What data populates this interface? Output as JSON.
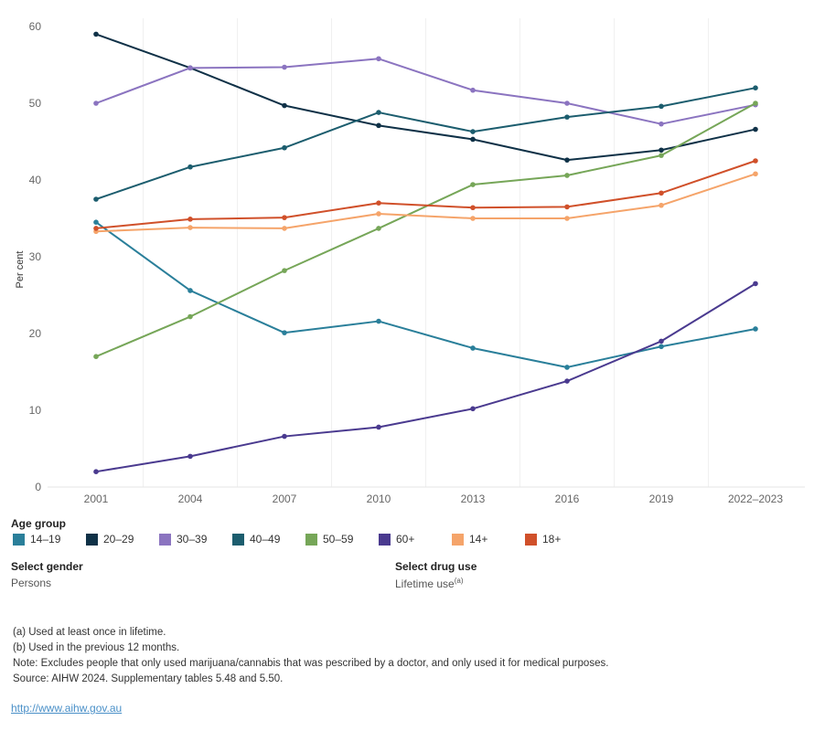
{
  "chart_data": {
    "type": "line",
    "ylabel": "Per cent",
    "xlabel": "",
    "ylim": [
      0,
      60
    ],
    "yticks": [
      0,
      10,
      20,
      30,
      40,
      50,
      60
    ],
    "categories": [
      "2001",
      "2004",
      "2007",
      "2010",
      "2013",
      "2016",
      "2019",
      "2022–2023"
    ],
    "series": [
      {
        "name": "14–19",
        "color": "#2a7f9a",
        "values": [
          34.5,
          25.6,
          20.1,
          21.6,
          18.1,
          15.6,
          18.3,
          20.6
        ]
      },
      {
        "name": "20–29",
        "color": "#0f3147",
        "values": [
          59.0,
          54.6,
          49.7,
          47.1,
          45.3,
          42.6,
          43.9,
          46.6
        ]
      },
      {
        "name": "30–39",
        "color": "#8b74c0",
        "values": [
          50.0,
          54.6,
          54.7,
          55.8,
          51.7,
          50.0,
          47.3,
          49.8
        ]
      },
      {
        "name": "40–49",
        "color": "#1c5d6e",
        "values": [
          37.5,
          41.7,
          44.2,
          48.8,
          46.3,
          48.2,
          49.6,
          52.0
        ]
      },
      {
        "name": "50–59",
        "color": "#76a658",
        "values": [
          17.0,
          22.2,
          28.2,
          33.7,
          39.4,
          40.6,
          43.2,
          50.0
        ]
      },
      {
        "name": "60+",
        "color": "#4a3a8f",
        "values": [
          2.0,
          4.0,
          6.6,
          7.8,
          10.2,
          13.8,
          19.0,
          26.5
        ]
      },
      {
        "name": "14+",
        "color": "#f5a46a",
        "values": [
          33.3,
          33.8,
          33.7,
          35.6,
          35.0,
          35.0,
          36.7,
          40.8
        ]
      },
      {
        "name": "18+",
        "color": "#d0502a",
        "values": [
          33.7,
          34.9,
          35.1,
          37.0,
          36.4,
          36.5,
          38.3,
          42.5
        ]
      }
    ]
  },
  "legend": {
    "title": "Age group"
  },
  "filters": {
    "gender": {
      "label": "Select gender",
      "value": "Persons"
    },
    "drug_use": {
      "label": "Select drug use",
      "value": "Lifetime use",
      "superscript": "(a)"
    }
  },
  "notes": {
    "a": "(a) Used at least once in lifetime.",
    "b": "(b) Used in the previous 12 months.",
    "note": "Note: Excludes people that only used marijuana/cannabis that was pescribed by a doctor, and only used it for medical purposes.",
    "source": "Source: AIHW 2024. Supplementary tables 5.48 and 5.50."
  },
  "link": "http://www.aihw.gov.au"
}
